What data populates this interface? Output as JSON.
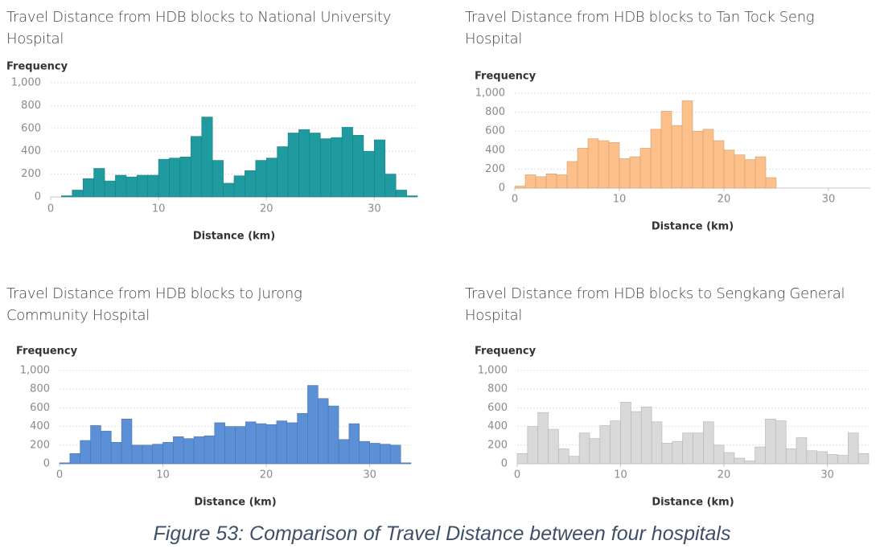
{
  "chart_data": [
    {
      "type": "histogram",
      "title": "Travel Distance from HDB blocks to National University Hospital",
      "ylabel": "Frequency",
      "xlabel": "Distance (km)",
      "color": "#1f9ba0",
      "bins": [
        1,
        2,
        3,
        4,
        5,
        6,
        7,
        8,
        9,
        10,
        11,
        12,
        13,
        14,
        15,
        16,
        17,
        18,
        19,
        20,
        21,
        22,
        23,
        24,
        25,
        26,
        27,
        28,
        29,
        30,
        31,
        32,
        33,
        34
      ],
      "counts": [
        10,
        60,
        160,
        250,
        140,
        190,
        175,
        190,
        190,
        330,
        340,
        350,
        530,
        700,
        320,
        120,
        185,
        230,
        320,
        340,
        440,
        560,
        590,
        560,
        510,
        520,
        610,
        540,
        400,
        500,
        200,
        60,
        10
      ],
      "xlim": [
        0,
        34
      ],
      "ylim": [
        0,
        1000
      ],
      "xticks": [
        0,
        10,
        20,
        30
      ],
      "yticks": [
        0,
        200,
        400,
        600,
        800,
        {
          "value": 1000,
          "label": "1,000"
        }
      ],
      "grid": true
    },
    {
      "type": "histogram",
      "title": "Travel Distance from HDB blocks to Tan Tock Seng Hospital",
      "ylabel": "Frequency",
      "xlabel": "Distance (km)",
      "color": "#fdc08a",
      "bins": [
        0,
        1,
        2,
        3,
        4,
        5,
        6,
        7,
        8,
        9,
        10,
        11,
        12,
        13,
        14,
        15,
        16,
        17,
        18,
        19,
        20,
        21,
        22,
        23,
        24,
        25
      ],
      "counts": [
        20,
        140,
        120,
        150,
        140,
        280,
        420,
        520,
        500,
        480,
        310,
        330,
        420,
        620,
        810,
        660,
        920,
        600,
        620,
        500,
        400,
        350,
        300,
        330,
        110
      ],
      "xlim": [
        0,
        34
      ],
      "ylim": [
        0,
        1000
      ],
      "xticks": [
        0,
        10,
        20,
        30
      ],
      "yticks": [
        0,
        200,
        400,
        600,
        800,
        {
          "value": 1000,
          "label": "1,000"
        }
      ],
      "grid": true
    },
    {
      "type": "histogram",
      "title": "Travel Distance from HDB blocks to Jurong Community Hospital",
      "ylabel": "Frequency",
      "xlabel": "Distance (km)",
      "color": "#5b8fd6",
      "bins": [
        0,
        1,
        2,
        3,
        4,
        5,
        6,
        7,
        8,
        9,
        10,
        11,
        12,
        13,
        14,
        15,
        16,
        17,
        18,
        19,
        20,
        21,
        22,
        23,
        24,
        25,
        26,
        27,
        28,
        29,
        30,
        31,
        32,
        33,
        34
      ],
      "counts": [
        10,
        110,
        250,
        410,
        350,
        230,
        480,
        200,
        200,
        210,
        230,
        290,
        270,
        290,
        300,
        440,
        400,
        400,
        450,
        430,
        420,
        460,
        440,
        540,
        840,
        700,
        620,
        260,
        430,
        240,
        220,
        210,
        200,
        10
      ],
      "xlim": [
        0,
        34
      ],
      "ylim": [
        0,
        1000
      ],
      "xticks": [
        0,
        10,
        20,
        30
      ],
      "yticks": [
        0,
        200,
        400,
        600,
        800,
        {
          "value": 1000,
          "label": "1,000"
        }
      ],
      "grid": true
    },
    {
      "type": "histogram",
      "title": "Travel Distance from HDB blocks to Sengkang General Hospital",
      "ylabel": "Frequency",
      "xlabel": "Distance (km)",
      "color": "#d9d9d9",
      "bins": [
        0,
        1,
        2,
        3,
        4,
        5,
        6,
        7,
        8,
        9,
        10,
        11,
        12,
        13,
        14,
        15,
        16,
        17,
        18,
        19,
        20,
        21,
        22,
        23,
        24,
        25,
        26,
        27,
        28,
        29,
        30,
        31,
        32,
        33,
        34
      ],
      "counts": [
        110,
        400,
        550,
        370,
        160,
        80,
        330,
        270,
        410,
        460,
        660,
        560,
        610,
        450,
        220,
        240,
        330,
        330,
        450,
        200,
        120,
        60,
        30,
        180,
        480,
        460,
        160,
        280,
        140,
        130,
        100,
        90,
        330,
        110
      ],
      "xlim": [
        0,
        34
      ],
      "ylim": [
        0,
        1000
      ],
      "xticks": [
        0,
        10,
        20,
        30
      ],
      "yticks": [
        0,
        200,
        400,
        600,
        800,
        {
          "value": 1000,
          "label": "1,000"
        }
      ],
      "grid": true
    }
  ],
  "caption": "Figure 53: Comparison of Travel Distance between four hospitals"
}
